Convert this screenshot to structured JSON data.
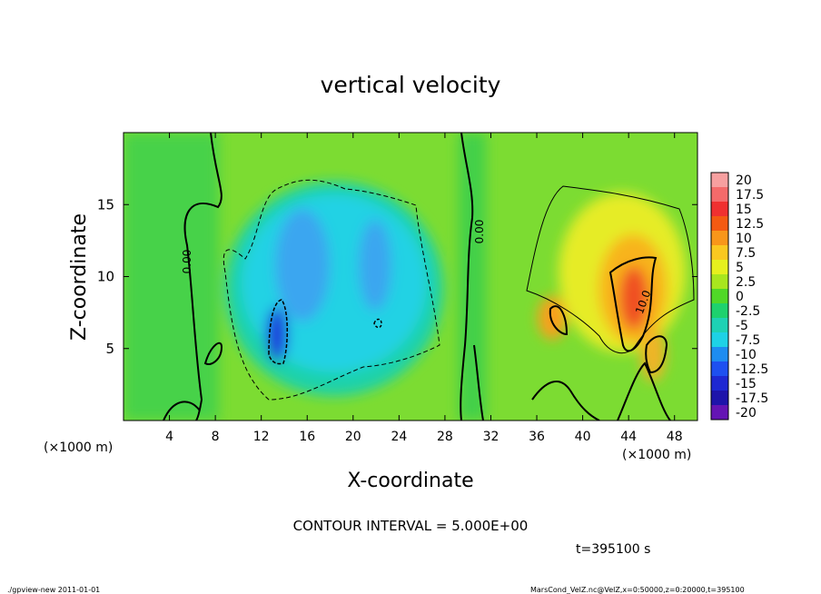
{
  "chart_data": {
    "type": "heatmap",
    "title": "vertical velocity",
    "xlabel": "X-coordinate",
    "ylabel": "Z-coordinate",
    "x_unit": "(×1000 m)",
    "y_unit": "(×1000 m)",
    "xlim": [
      0,
      50
    ],
    "ylim": [
      0,
      20
    ],
    "x_ticks": [
      4,
      8,
      12,
      16,
      20,
      24,
      28,
      32,
      36,
      40,
      44,
      48
    ],
    "y_ticks": [
      5,
      10,
      15
    ],
    "colorbar": {
      "levels": [
        "20",
        "17.5",
        "15",
        "12.5",
        "10",
        "7.5",
        "5",
        "2.5",
        "0",
        "-2.5",
        "-5",
        "-7.5",
        "-10",
        "-12.5",
        "-15",
        "-17.5",
        "-20"
      ],
      "colors": [
        "#f7a0a0",
        "#f46a6a",
        "#f03030",
        "#f45a12",
        "#f8961a",
        "#fac820",
        "#e6f01e",
        "#a8e61e",
        "#50d828",
        "#1ed26e",
        "#1ed2b4",
        "#1ed2e6",
        "#1e8cf0",
        "#1e50f0",
        "#1e28d2",
        "#1e14aa",
        "#6414b4"
      ]
    },
    "contour_labels": [
      "0.00",
      "0.00",
      "10.0"
    ],
    "contour_interval": "CONTOUR INTERVAL = 5.000E+00",
    "time": "t=395100 s"
  },
  "footer": {
    "left": "./gpview-new   2011-01-01",
    "right": "MarsCond_VelZ.nc@VelZ,x=0:50000,z=0:20000,t=395100"
  }
}
